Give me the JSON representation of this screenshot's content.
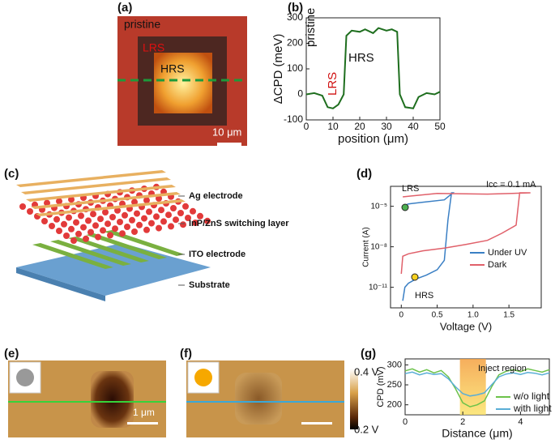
{
  "panel_labels": [
    "(a)",
    "(b)",
    "(c)",
    "(d)",
    "(e)",
    "(f)",
    "(g)"
  ],
  "panels": {
    "a": {
      "texts": [
        "pristine",
        "LRS",
        "HRS"
      ],
      "scale_bar": "10 μm"
    },
    "c": {
      "layers": [
        "Ag electrode",
        "InP/ZnS switching layer",
        "ITO electrode",
        "Substrate"
      ]
    },
    "e": {
      "scale_bar": "1 μm"
    },
    "f": {
      "colorbar": [
        "0.4 V",
        "0.2 V"
      ]
    }
  },
  "chart_data": [
    {
      "type": "line",
      "xlabel": "position (μm)",
      "ylabel": "ΔCPD (meV)",
      "annotations": [
        "pristine",
        "LRS",
        "HRS"
      ],
      "x": [
        0,
        3,
        6,
        8,
        10,
        12,
        14,
        15,
        17,
        20,
        22,
        25,
        27,
        30,
        32,
        34,
        35,
        37,
        40,
        42,
        45,
        48,
        50
      ],
      "series": [
        {
          "color": "#1e6e1e",
          "values": [
            0,
            5,
            -5,
            -50,
            -55,
            -40,
            0,
            230,
            250,
            245,
            255,
            240,
            260,
            250,
            255,
            245,
            0,
            -50,
            -55,
            -10,
            5,
            0,
            10
          ]
        }
      ],
      "xlim": [
        0,
        50
      ],
      "xticks": [
        0,
        10,
        20,
        30,
        40,
        50
      ],
      "ylim": [
        -100,
        300
      ],
      "yticks": [
        -100,
        0,
        100,
        200,
        300
      ]
    },
    {
      "type": "line",
      "xlabel": "Voltage (V)",
      "ylabel": "Current (A)",
      "log_y": true,
      "annotations": [
        "Icc = 0.1 mA",
        "LRS",
        "HRS"
      ],
      "series": [
        {
          "name": "Under UV",
          "color": "#3a7fc4",
          "x": [
            0.02,
            0.05,
            0.1,
            0.2,
            0.35,
            0.5,
            0.6,
            0.65,
            0.7,
            0.72,
            0.6,
            0.3,
            0.1,
            0.02
          ],
          "values": [
            1e-12,
            1e-11,
            2e-11,
            4e-11,
            8e-11,
            2e-10,
            1e-09,
            1e-06,
            0.0001,
            0.0001,
            3e-05,
            2e-05,
            1.5e-05,
            1e-05
          ]
        },
        {
          "name": "Dark",
          "color": "#e0606a",
          "x": [
            0,
            0.02,
            0.1,
            0.3,
            0.6,
            0.9,
            1.2,
            1.4,
            1.6,
            1.65,
            1.7,
            1.8,
            1.2,
            0.5,
            0.02
          ],
          "values": [
            1e-10,
            2e-09,
            3e-09,
            5e-09,
            8e-09,
            1.5e-08,
            3e-08,
            1e-07,
            4e-07,
            0.0001,
            0.0001,
            0.0001,
            8e-05,
            9e-05,
            5e-05
          ]
        }
      ],
      "xlim": [
        -0.15,
        1.95
      ],
      "xticks": [
        0,
        0.5,
        {
          "value": 1,
          "label": "1.0"
        },
        1.5
      ],
      "ylim": [
        3e-13,
        0.0003
      ],
      "yticks": [
        {
          "value": 1e-05,
          "label": "10⁻⁵"
        },
        {
          "value": 1e-08,
          "label": "10⁻⁸"
        },
        {
          "value": 1e-11,
          "label": "10⁻¹¹"
        }
      ]
    },
    {
      "type": "line",
      "xlabel": "Distance (μm)",
      "ylabel": "CPD (mV)",
      "annotations": [
        "Inject region"
      ],
      "region": [
        1.9,
        2.8
      ],
      "x": [
        0,
        0.25,
        0.5,
        0.75,
        1,
        1.25,
        1.5,
        1.75,
        2,
        2.25,
        2.5,
        2.75,
        3,
        3.25,
        3.5,
        3.75,
        4,
        4.25,
        4.5,
        4.75,
        5
      ],
      "series": [
        {
          "name": "w/o light",
          "color": "#6cc24a",
          "values": [
            285,
            290,
            282,
            288,
            280,
            286,
            270,
            240,
            205,
            195,
            200,
            210,
            245,
            275,
            284,
            288,
            283,
            290,
            286,
            282,
            288
          ]
        },
        {
          "name": "with light",
          "color": "#5aaed6",
          "values": [
            278,
            282,
            275,
            280,
            276,
            278,
            265,
            245,
            228,
            222,
            225,
            230,
            250,
            270,
            277,
            280,
            276,
            281,
            279,
            275,
            280
          ]
        }
      ],
      "xlim": [
        0,
        5
      ],
      "xticks": [
        0,
        2,
        4
      ],
      "ylim": [
        175,
        315
      ],
      "yticks": [
        200,
        250,
        300
      ]
    }
  ]
}
